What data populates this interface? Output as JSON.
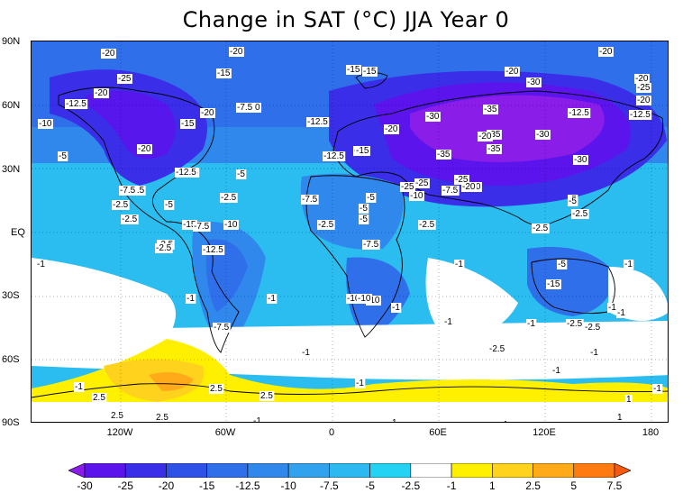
{
  "title": "Change in SAT (°C) JJA Year 0",
  "lat_labels": [
    "90N",
    "60N",
    "30N",
    "EQ",
    "30S",
    "60S",
    "90S"
  ],
  "lon_labels": [
    "120W",
    "60W",
    "0",
    "60E",
    "120E",
    "180"
  ],
  "colorbar": {
    "levels": [
      "-30",
      "-25",
      "-20",
      "-15",
      "-12.5",
      "-10",
      "-7.5",
      "-5",
      "-2.5",
      "-1",
      "1",
      "2.5",
      "5",
      "7.5"
    ],
    "colors": [
      "#8a1de8",
      "#5b14ec",
      "#3a2ee8",
      "#2e52e8",
      "#2f6fea",
      "#3088ec",
      "#31a2ee",
      "#2cb8f0",
      "#24d3f4",
      "#ffffff",
      "#fff000",
      "#ffd21e",
      "#ffaa18",
      "#ff7a10",
      "#f55a10"
    ]
  },
  "contour_labels": [
    "-20",
    "-20",
    "-20",
    "-20",
    "-25",
    "-15",
    "-15",
    "-15",
    "-20",
    "-30",
    "-20",
    "-25",
    "-12.5",
    "-20",
    "-12.5",
    "-10",
    "-7.5 0",
    "-12.5",
    "-15",
    "-20",
    "-20",
    "-30",
    "-35",
    "-20",
    "-12.5",
    "-15",
    "-10",
    "-20",
    "-7.5",
    "-12.5",
    "-15",
    "-25",
    "-35",
    "-35",
    "-20",
    "-12.5",
    "-35",
    "-30",
    "-30",
    "-5",
    "-5",
    "-12.5",
    "-7.5",
    "-7.5",
    "-25",
    "-25",
    "-20",
    "-7.5",
    "-2.5",
    "-15",
    "-10",
    "-5",
    "-2.5",
    "-5",
    "-2.5",
    "-5",
    "-7.5",
    "-10",
    "-5",
    "-2.5",
    "-2.5",
    "-2.5",
    "-7.5",
    "-5",
    "-10",
    "-2.5",
    "-1",
    "-12.5",
    "-2.5",
    "-1",
    "-5",
    "-15",
    "-1",
    "-1",
    "-1",
    "-10",
    "-1",
    "-2.5",
    "-7.5",
    "-1",
    "-2.5",
    "-5",
    "-1",
    "-1",
    "-1",
    "-1",
    "-2.5",
    "2.5",
    "-1",
    "-2.5",
    "-1",
    "-1",
    "-1",
    "2.5",
    "2.5",
    "2.5",
    "1",
    "-1",
    "1",
    "2.5",
    "-1",
    "-1",
    "1",
    "1"
  ]
}
